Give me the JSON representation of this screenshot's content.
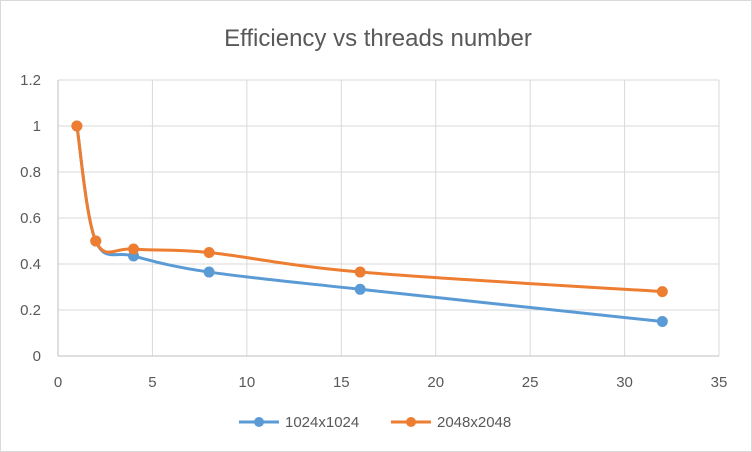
{
  "chart_data": {
    "type": "scatter",
    "title": "Efficiency vs threads number",
    "xlabel": "",
    "ylabel": "",
    "xlim": [
      0,
      35
    ],
    "ylim": [
      0,
      1.2
    ],
    "x_ticks": [
      0,
      5,
      10,
      15,
      20,
      25,
      30,
      35
    ],
    "y_ticks": [
      0,
      0.2,
      0.4,
      0.6,
      0.8,
      1,
      1.2
    ],
    "x_tick_labels": [
      "0",
      "5",
      "10",
      "15",
      "20",
      "25",
      "30",
      "35"
    ],
    "y_tick_labels": [
      "0",
      "0.2",
      "0.4",
      "0.6",
      "0.8",
      "1",
      "1.2"
    ],
    "grid": true,
    "smooth_lines": true,
    "legend_position": "bottom",
    "series": [
      {
        "name": "1024x1024",
        "color": "#5b9bd5",
        "x": [
          1,
          2,
          4,
          8,
          16,
          32
        ],
        "y": [
          1.0,
          0.5,
          0.435,
          0.365,
          0.29,
          0.15
        ]
      },
      {
        "name": "2048x2048",
        "color": "#ed7d31",
        "x": [
          1,
          2,
          4,
          8,
          16,
          32
        ],
        "y": [
          1.0,
          0.5,
          0.465,
          0.45,
          0.365,
          0.28
        ]
      }
    ]
  }
}
